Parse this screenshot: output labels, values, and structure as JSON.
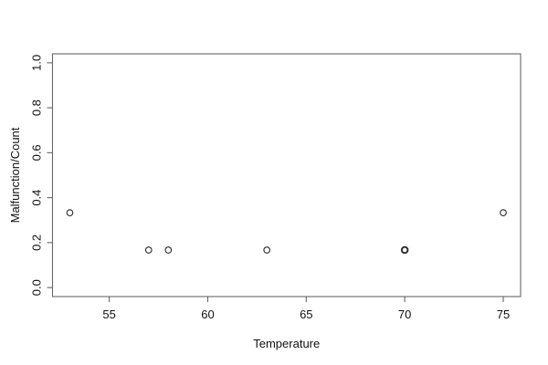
{
  "figure": {
    "background": "#ffffff",
    "text_color": "#111111",
    "line_color": "#666666",
    "point_color": "#2a2a2a"
  },
  "chart_data": {
    "type": "scatter",
    "title": "",
    "xlabel": "Temperature",
    "ylabel": "Malfunction/Count",
    "xlim": [
      52.12,
      75.88
    ],
    "ylim": [
      -0.04,
      1.04
    ],
    "x_ticks": [
      55,
      60,
      65,
      70,
      75
    ],
    "x_tick_labels": [
      "55",
      "60",
      "65",
      "70",
      "75"
    ],
    "y_ticks": [
      0.0,
      0.2,
      0.4,
      0.6,
      0.8,
      1.0
    ],
    "y_tick_labels": [
      "0.0",
      "0.2",
      "0.4",
      "0.6",
      "0.8",
      "1.0"
    ],
    "marker": "open-circle",
    "grid": false,
    "legend": null,
    "points": [
      {
        "x": 53,
        "y": 0.333,
        "overplotted": false
      },
      {
        "x": 57,
        "y": 0.167,
        "overplotted": false
      },
      {
        "x": 58,
        "y": 0.167,
        "overplotted": false
      },
      {
        "x": 63,
        "y": 0.167,
        "overplotted": false
      },
      {
        "x": 70,
        "y": 0.167,
        "overplotted": true
      },
      {
        "x": 75,
        "y": 0.333,
        "overplotted": false
      }
    ]
  }
}
